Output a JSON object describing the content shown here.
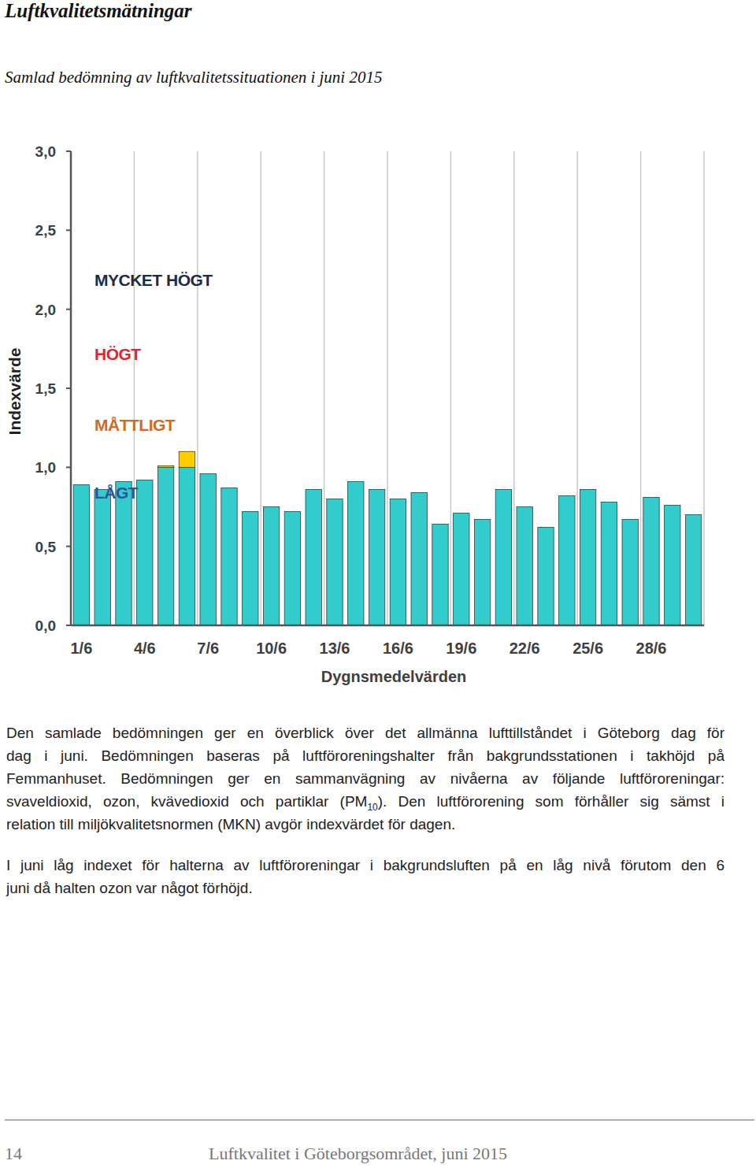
{
  "header": {
    "title": "Luftkvalitetsmätningar",
    "subtitle": "Samlad bedömning av luftkvalitetssituationen i juni 2015"
  },
  "chart_data": {
    "type": "bar",
    "stacked": true,
    "grid": true,
    "x_label": "Dygnsmedelvärden",
    "y_label": "Indexvärde",
    "categories": [
      "1/6",
      null,
      null,
      "4/6",
      null,
      null,
      "7/6",
      null,
      null,
      "10/6",
      null,
      null,
      "13/6",
      null,
      null,
      "16/6",
      null,
      null,
      "19/6",
      null,
      null,
      "22/6",
      null,
      null,
      "25/6",
      null,
      null,
      "28/6",
      null,
      null
    ],
    "series": [
      {
        "color": "#33cccc",
        "values": [
          0.89,
          0.86,
          0.91,
          0.92,
          1.0,
          1.0,
          0.96,
          0.87,
          0.72,
          0.75,
          0.72,
          0.86,
          0.8,
          0.91,
          0.86,
          0.8,
          0.84,
          0.64,
          0.71,
          0.67,
          0.86,
          0.75,
          0.62,
          0.82,
          0.86,
          0.78,
          0.67,
          0.81,
          0.76,
          0.7
        ]
      },
      {
        "color": "#ffcc00",
        "values": [
          0,
          0,
          0,
          0,
          0.01,
          0.1,
          0,
          0,
          0,
          0,
          0,
          0,
          0,
          0,
          0,
          0,
          0,
          0,
          0,
          0,
          0,
          0,
          0,
          0,
          0,
          0,
          0,
          0,
          0,
          0
        ]
      }
    ],
    "ylim": [
      0,
      3
    ],
    "yticks": [
      {
        "value": 0,
        "label": "0,0"
      },
      {
        "value": 0.5,
        "label": "0,5"
      },
      {
        "value": 1,
        "label": "1,0"
      },
      {
        "value": 1.5,
        "label": "1,5"
      },
      {
        "value": 2,
        "label": "2,0"
      },
      {
        "value": 2.5,
        "label": "2,5"
      },
      {
        "value": 3,
        "label": "3,0"
      }
    ],
    "annotations": [
      {
        "text": "MYCKET HÖGT",
        "y": 2.19,
        "color": "#1f2a44"
      },
      {
        "text": "HÖGT",
        "y": 1.72,
        "color": "#e0262a"
      },
      {
        "text": "MÅTTLIGT",
        "y": 1.27,
        "color": "#d2691e"
      },
      {
        "text": "LÅGT",
        "y": 0.84,
        "color": "#2f5597"
      }
    ]
  },
  "body": {
    "paragraphs": [
      {
        "lines": [
          [
            {
              "text": "Den samlade bedömningen ger en överblick över det allmänna lufttillståndet i Göteborg dag för"
            }
          ],
          [
            {
              "text": "dag i juni. Bedömningen baseras på luftföroreningshalter från bakgrundsstationen i takhöjd på"
            }
          ],
          [
            {
              "text": "Femmanhuset. Bedömningen ger en sammanvägning av nivåerna av följande luftföroreningar:"
            }
          ],
          [
            {
              "text": "svaveldioxid, ozon, kvävedioxid och partiklar (PM"
            },
            {
              "text": "10",
              "sub": true
            },
            {
              "text": "). Den luftförorening som förhåller sig sämst i"
            }
          ],
          [
            {
              "text": "relation till miljökvalitetsnormen (MKN) avgör indexvärdet för dagen."
            }
          ]
        ]
      },
      {
        "lines": [
          [
            {
              "text": "I juni låg indexet för halterna av luftföroreningar i bakgrundsluften på en låg nivå förutom den 6"
            }
          ],
          [
            {
              "text": "juni då halten ozon var något förhöjd."
            }
          ]
        ]
      }
    ]
  },
  "footer": {
    "page": 14,
    "text": "Luftkvalitet i Göteborgsområdet, juni 2015"
  }
}
